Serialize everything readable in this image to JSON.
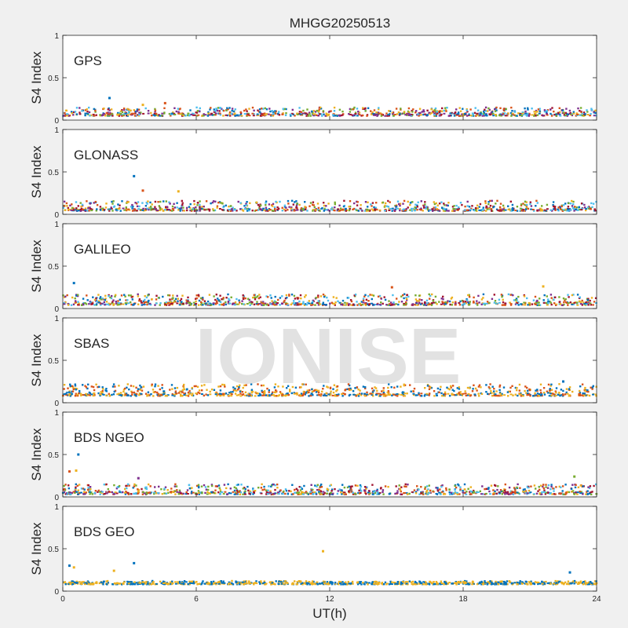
{
  "figure": {
    "title": "MHGG20250513",
    "xlabel": "UT(h)",
    "watermark": "IONISE"
  },
  "chart_data": {
    "type": "scatter",
    "title": "MHGG20250513",
    "xlabel": "UT(h)",
    "ylabel": "S4 Index",
    "xlim": [
      0,
      24
    ],
    "ylim": [
      0,
      1
    ],
    "xticks": [
      0,
      6,
      12,
      18,
      24
    ],
    "yticks": [
      0,
      0.5,
      1
    ],
    "grid": false,
    "series_colors": [
      "#0072BD",
      "#D95319",
      "#EDB120",
      "#7E2F8E",
      "#77AC30",
      "#4DBEEE",
      "#A2142F"
    ],
    "panels": [
      {
        "name": "GPS",
        "ylabel": "S4 Index",
        "typical_s4": [
          0.05,
          0.15
        ],
        "colors_used": [
          "#0072BD",
          "#D95319",
          "#EDB120",
          "#7E2F8E",
          "#77AC30",
          "#4DBEEE",
          "#A2142F"
        ],
        "outliers": [
          [
            2.1,
            0.26
          ],
          [
            4.6,
            0.2
          ],
          [
            3.6,
            0.18
          ]
        ]
      },
      {
        "name": "GLONASS",
        "ylabel": "S4 Index",
        "typical_s4": [
          0.04,
          0.16
        ],
        "colors_used": [
          "#0072BD",
          "#D95319",
          "#EDB120",
          "#7E2F8E",
          "#77AC30",
          "#4DBEEE",
          "#A2142F"
        ],
        "outliers": [
          [
            3.2,
            0.45
          ],
          [
            3.6,
            0.28
          ],
          [
            5.2,
            0.27
          ]
        ]
      },
      {
        "name": "GALILEO",
        "ylabel": "S4 Index",
        "typical_s4": [
          0.04,
          0.17
        ],
        "colors_used": [
          "#0072BD",
          "#D95319",
          "#EDB120",
          "#7E2F8E",
          "#77AC30",
          "#4DBEEE",
          "#A2142F"
        ],
        "outliers": [
          [
            0.5,
            0.3
          ],
          [
            14.8,
            0.25
          ],
          [
            21.6,
            0.26
          ]
        ]
      },
      {
        "name": "SBAS",
        "ylabel": "S4 Index",
        "typical_s4": [
          0.08,
          0.22
        ],
        "colors_used": [
          "#0072BD",
          "#D95319",
          "#EDB120"
        ],
        "outliers": [
          [
            22.5,
            0.25
          ]
        ]
      },
      {
        "name": "BDS NGEO",
        "ylabel": "S4 Index",
        "typical_s4": [
          0.03,
          0.15
        ],
        "colors_used": [
          "#0072BD",
          "#D95319",
          "#EDB120",
          "#7E2F8E",
          "#77AC30",
          "#4DBEEE",
          "#A2142F"
        ],
        "outliers": [
          [
            0.7,
            0.5
          ],
          [
            0.3,
            0.3
          ],
          [
            0.6,
            0.31
          ],
          [
            3.4,
            0.22
          ],
          [
            23.0,
            0.24
          ]
        ]
      },
      {
        "name": "BDS GEO",
        "ylabel": "S4 Index",
        "typical_s4": [
          0.08,
          0.12
        ],
        "colors_used": [
          "#EDB120",
          "#0072BD"
        ],
        "outliers": [
          [
            11.7,
            0.47
          ],
          [
            0.3,
            0.3
          ],
          [
            0.5,
            0.28
          ],
          [
            3.2,
            0.33
          ],
          [
            2.3,
            0.24
          ],
          [
            22.8,
            0.22
          ]
        ]
      }
    ]
  }
}
